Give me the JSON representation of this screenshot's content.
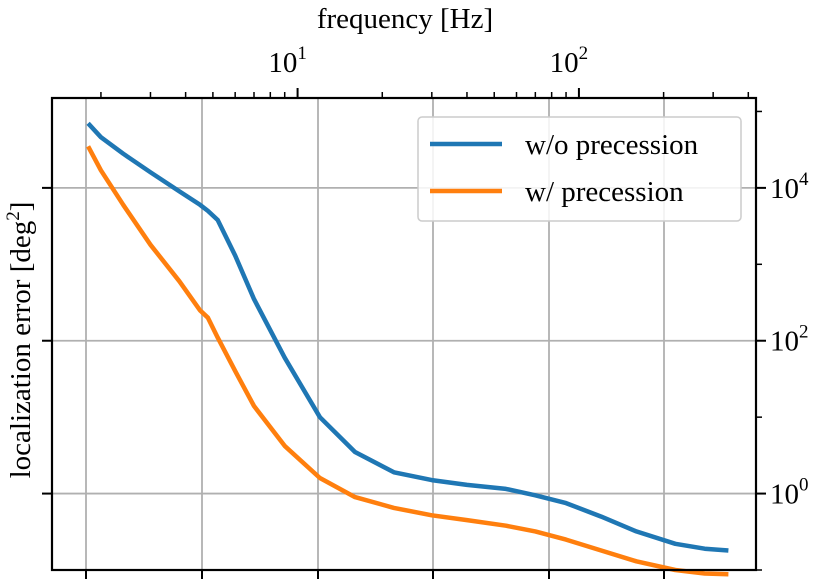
{
  "chart_data": {
    "type": "line",
    "title": "",
    "top_xlabel": "frequency [Hz]",
    "ylabel_text": "localization error [deg",
    "ylabel_sup": "2",
    "ylabel_close": "]",
    "yscale": "log",
    "ylim": [
      0.1,
      150000
    ],
    "top_xscale": "log",
    "top_xlim": [
      1.34,
      426
    ],
    "top_xticks": [
      {
        "value": 10,
        "base": "10",
        "exp": "1"
      },
      {
        "value": 100,
        "base": "10",
        "exp": "2"
      }
    ],
    "yticks": [
      {
        "value": 1,
        "base": "10",
        "exp": "0"
      },
      {
        "value": 100,
        "base": "10",
        "exp": "2"
      },
      {
        "value": 10000,
        "base": "10",
        "exp": "4"
      }
    ],
    "grid": true,
    "legend_position": "top-right",
    "series": [
      {
        "name": "w/o precession",
        "color": "#1f77b4",
        "x": [
          1.8,
          2.0,
          2.4,
          3.0,
          3.8,
          4.5,
          4.8,
          5.2,
          6.0,
          7.0,
          9.0,
          12,
          16,
          22,
          30,
          40,
          55,
          70,
          90,
          120,
          160,
          220,
          280,
          340
        ],
        "y": [
          70000,
          46000,
          28000,
          16000,
          9000,
          6000,
          5000,
          3800,
          1300,
          350,
          60,
          10,
          3.5,
          1.9,
          1.5,
          1.3,
          1.15,
          0.95,
          0.75,
          0.5,
          0.32,
          0.22,
          0.19,
          0.18
        ]
      },
      {
        "name": "w/ precession",
        "color": "#ff7f0e",
        "x": [
          1.8,
          2.0,
          2.4,
          3.0,
          3.8,
          4.5,
          4.8,
          5.2,
          6.0,
          7.0,
          9.0,
          12,
          16,
          22,
          30,
          40,
          55,
          70,
          90,
          120,
          160,
          220,
          280,
          340
        ],
        "y": [
          35000,
          17000,
          6000,
          1800,
          600,
          250,
          200,
          110,
          40,
          14,
          4.2,
          1.6,
          0.9,
          0.65,
          0.52,
          0.45,
          0.38,
          0.32,
          0.25,
          0.18,
          0.13,
          0.1,
          0.09,
          0.088
        ]
      }
    ]
  }
}
